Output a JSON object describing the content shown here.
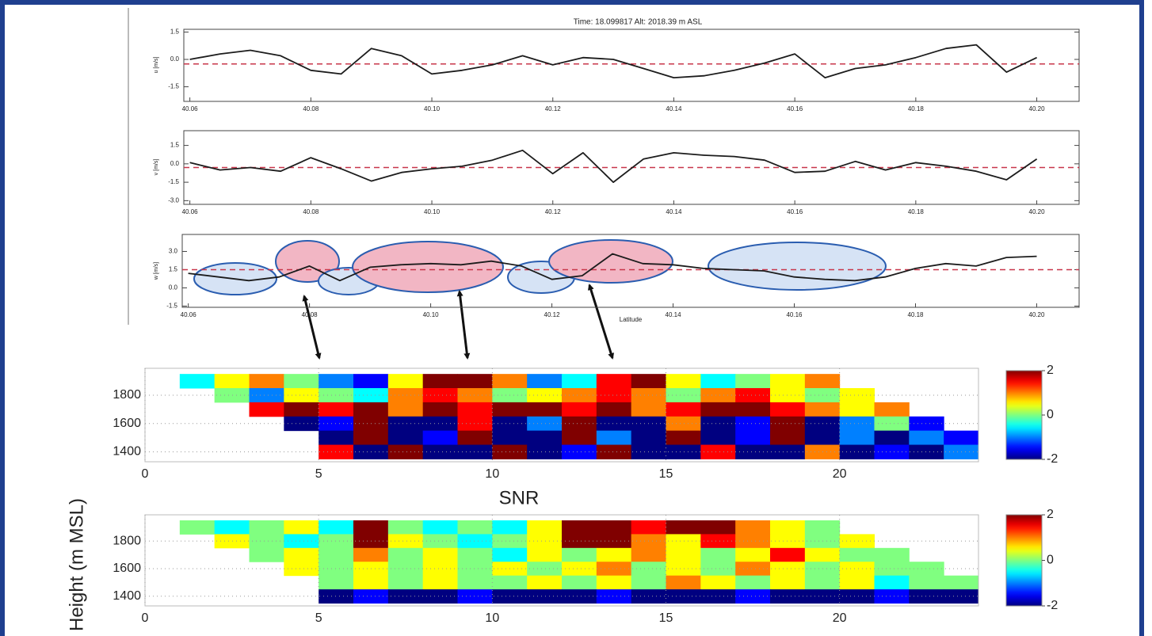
{
  "chart_data": [
    {
      "type": "line",
      "title": "Time:  18.099817   Alt:  2018.39 m ASL",
      "ylabel": "u [m/s]",
      "x": [
        40.06,
        40.065,
        40.07,
        40.075,
        40.08,
        40.085,
        40.09,
        40.095,
        40.1,
        40.105,
        40.11,
        40.115,
        40.12,
        40.125,
        40.13,
        40.135,
        40.14,
        40.145,
        40.15,
        40.155,
        40.16,
        40.165,
        40.17,
        40.175,
        40.18,
        40.185,
        40.19,
        40.195,
        40.2
      ],
      "values": [
        0.0,
        0.3,
        0.5,
        0.2,
        -0.6,
        -0.8,
        0.6,
        0.2,
        -0.8,
        -0.6,
        -0.3,
        0.2,
        -0.3,
        0.1,
        0.0,
        -0.5,
        -1.0,
        -0.9,
        -0.6,
        -0.2,
        0.3,
        -1.0,
        -0.5,
        -0.3,
        0.1,
        0.6,
        0.8,
        -0.7,
        0.1
      ],
      "color": "#1c1c1c",
      "hline": -0.25,
      "hline_color": "#c8364a",
      "xlim": [
        40.059,
        40.207
      ],
      "xticks": [
        40.06,
        40.08,
        {
          "value": 40.1,
          "label": "40.10"
        },
        40.12,
        40.14,
        40.16,
        40.18,
        {
          "value": 40.2,
          "label": "40.20"
        }
      ],
      "ylim": [
        -2.3,
        1.65
      ],
      "yticks": [
        1.5,
        {
          "value": 0,
          "label": "0.0"
        },
        -1.5
      ]
    },
    {
      "type": "line",
      "ylabel": "v [m/s]",
      "x": [
        40.06,
        40.065,
        40.07,
        40.075,
        40.08,
        40.085,
        40.09,
        40.095,
        40.1,
        40.105,
        40.11,
        40.115,
        40.12,
        40.125,
        40.13,
        40.135,
        40.14,
        40.145,
        40.15,
        40.155,
        40.16,
        40.165,
        40.17,
        40.175,
        40.18,
        40.185,
        40.19,
        40.195,
        40.2
      ],
      "values": [
        0.1,
        -0.5,
        -0.3,
        -0.6,
        0.5,
        -0.4,
        -1.4,
        -0.7,
        -0.4,
        -0.2,
        0.3,
        1.1,
        -0.8,
        0.9,
        -1.5,
        0.4,
        0.9,
        0.7,
        0.6,
        0.3,
        -0.7,
        -0.6,
        0.2,
        -0.5,
        0.1,
        -0.2,
        -0.6,
        -1.3,
        0.4
      ],
      "color": "#1c1c1c",
      "hline": -0.3,
      "hline_color": "#c8364a",
      "xlim": [
        40.059,
        40.207
      ],
      "xticks": [
        40.06,
        40.08,
        {
          "value": 40.1,
          "label": "40.10"
        },
        40.12,
        40.14,
        40.16,
        40.18,
        {
          "value": 40.2,
          "label": "40.20"
        }
      ],
      "ylim": [
        -3.3,
        2.7
      ],
      "yticks": [
        1.5,
        {
          "value": 0,
          "label": "0.0"
        },
        -1.5,
        {
          "value": -3,
          "label": "-3.0"
        }
      ]
    },
    {
      "type": "line",
      "ylabel": "w [m/s]",
      "xlabel": "Latitude",
      "x": [
        40.06,
        40.065,
        40.07,
        40.075,
        40.08,
        40.085,
        40.09,
        40.095,
        40.1,
        40.105,
        40.11,
        40.115,
        40.12,
        40.125,
        40.13,
        40.135,
        40.14,
        40.145,
        40.15,
        40.155,
        40.16,
        40.165,
        40.17,
        40.175,
        40.18,
        40.185,
        40.19,
        40.195,
        40.2
      ],
      "values": [
        1.2,
        0.9,
        0.6,
        0.9,
        1.8,
        0.6,
        1.7,
        1.9,
        2.0,
        1.9,
        2.2,
        1.8,
        0.7,
        1.0,
        2.8,
        2.0,
        1.9,
        1.6,
        1.5,
        1.4,
        0.9,
        0.7,
        0.6,
        0.9,
        1.6,
        2.0,
        1.8,
        2.5,
        2.6
      ],
      "color": "#1c1c1c",
      "hline": 1.5,
      "hline_color": "#c8364a",
      "xlim": [
        40.059,
        40.207
      ],
      "xticks": [
        40.06,
        40.08,
        {
          "value": 40.1,
          "label": "40.10"
        },
        40.12,
        40.14,
        40.16,
        40.18,
        {
          "value": 40.2,
          "label": "40.20"
        }
      ],
      "ylim": [
        -1.6,
        4.4
      ],
      "yticks": [
        {
          "value": 3,
          "label": "3.0"
        },
        1.5,
        {
          "value": 0,
          "label": "0.0"
        },
        -1.5
      ]
    },
    {
      "type": "heatmap",
      "colormap": "jet",
      "clim": [
        -2,
        2
      ],
      "colorbar_ticks": [
        2,
        0,
        -2
      ],
      "grid": true,
      "x": [
        0.5,
        1.5,
        2.5,
        3.5,
        4.5,
        5.5,
        6.5,
        7.5,
        8.5,
        9.5,
        10.5,
        11.5,
        12.5,
        13.5,
        14.5,
        15.5,
        16.5,
        17.5,
        18.5,
        19.5,
        20.5,
        21.5,
        22.5,
        23.5
      ],
      "y": [
        1900,
        1800,
        1700,
        1600,
        1500,
        1400
      ],
      "values": [
        [
          null,
          -0.5,
          0.5,
          1,
          0,
          -1,
          -1.5,
          0.5,
          2,
          2,
          1,
          -1,
          -0.5,
          1.5,
          2,
          0.5,
          -0.5,
          0,
          0.5,
          1,
          null,
          null,
          null,
          null
        ],
        [
          null,
          null,
          0,
          -1,
          0.5,
          0,
          -0.5,
          1,
          1.5,
          1,
          0,
          0.5,
          1,
          1.5,
          1,
          0,
          1,
          1.5,
          0.5,
          0,
          0.5,
          null,
          null,
          null
        ],
        [
          null,
          null,
          null,
          1.5,
          2,
          1.5,
          2,
          1,
          2,
          1.5,
          2,
          2,
          1.5,
          2,
          1,
          1.5,
          2,
          2,
          1.5,
          1,
          0.5,
          1,
          null,
          null
        ],
        [
          null,
          null,
          null,
          null,
          -2,
          -1.5,
          2,
          -2,
          -2,
          1.5,
          -2,
          -1,
          2,
          -2,
          -2,
          1,
          -2,
          -1.5,
          2,
          -2,
          -1,
          0,
          -1.5,
          null
        ],
        [
          null,
          null,
          null,
          null,
          null,
          -2,
          2,
          -2,
          -1.5,
          2,
          -2,
          -2,
          2,
          -1,
          -2,
          2,
          -2,
          -1.5,
          2,
          -2,
          -1,
          -2,
          -1,
          -1.5
        ],
        [
          null,
          null,
          null,
          null,
          null,
          1.5,
          -2,
          2,
          -2,
          -2,
          2,
          -2,
          -1.5,
          2,
          -2,
          -2,
          1.5,
          -2,
          -2,
          1,
          -2,
          -1.5,
          -2,
          -1
        ]
      ],
      "xlim": [
        0,
        24
      ],
      "xticks": [
        0,
        5,
        10,
        15,
        20
      ],
      "ylim": [
        1330,
        1990
      ],
      "yticks": [
        1800,
        1600,
        1400
      ]
    },
    {
      "type": "heatmap",
      "title": "SNR",
      "ylabel": "Height (m MSL)",
      "colormap": "jet",
      "clim": [
        -2,
        2
      ],
      "colorbar_ticks": [
        2,
        0,
        -2
      ],
      "grid": true,
      "x": [
        0.5,
        1.5,
        2.5,
        3.5,
        4.5,
        5.5,
        6.5,
        7.5,
        8.5,
        9.5,
        10.5,
        11.5,
        12.5,
        13.5,
        14.5,
        15.5,
        16.5,
        17.5,
        18.5,
        19.5,
        20.5,
        21.5,
        22.5,
        23.5
      ],
      "y": [
        1900,
        1800,
        1700,
        1600,
        1500,
        1400
      ],
      "values": [
        [
          null,
          0,
          -0.5,
          0,
          0.5,
          -0.5,
          2,
          0,
          -0.5,
          0,
          -0.5,
          0.5,
          2,
          2,
          1.5,
          2,
          2,
          1,
          0.5,
          0,
          null,
          null,
          null,
          null
        ],
        [
          null,
          null,
          0.5,
          0,
          -0.5,
          0,
          2,
          0.5,
          0,
          -0.5,
          0,
          0.5,
          2,
          2,
          1,
          0.5,
          1.5,
          1,
          0.5,
          0,
          0.5,
          null,
          null,
          null
        ],
        [
          null,
          null,
          null,
          0,
          0.5,
          0,
          1,
          0,
          0.5,
          0,
          -0.5,
          0.5,
          0,
          0.5,
          1,
          0.5,
          0,
          0.5,
          1.5,
          0.5,
          0,
          0,
          null,
          null
        ],
        [
          null,
          null,
          null,
          null,
          0.5,
          0,
          0.5,
          0,
          0.5,
          0,
          0.5,
          0,
          0.5,
          1,
          0,
          0.5,
          0,
          1,
          0.5,
          0,
          0.5,
          0,
          0,
          null
        ],
        [
          null,
          null,
          null,
          null,
          null,
          0,
          0.5,
          0,
          0.5,
          0,
          0,
          0.5,
          0,
          0.5,
          0,
          1,
          0.5,
          0,
          0.5,
          0,
          0.5,
          -0.5,
          0,
          0
        ],
        [
          null,
          null,
          null,
          null,
          null,
          -2,
          -1.5,
          -2,
          -2,
          -1.5,
          -2,
          -2,
          -2,
          -1.5,
          -2,
          -2,
          -2,
          -1.5,
          -2,
          -2,
          -2,
          -1.5,
          -2,
          -2
        ]
      ],
      "xlim": [
        0,
        24
      ],
      "xticks": [
        0,
        5,
        10,
        15,
        20
      ],
      "ylim": [
        1330,
        1990
      ],
      "yticks": [
        1800,
        1600,
        1400
      ]
    }
  ]
}
